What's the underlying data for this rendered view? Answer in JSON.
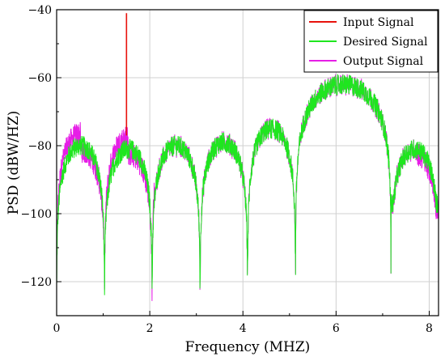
{
  "chart_data": {
    "type": "line",
    "xlabel": "Frequency (MHZ)",
    "ylabel": "PSD (dBW/HZ)",
    "xlim": [
      0,
      8.2
    ],
    "ylim": [
      -130,
      -40
    ],
    "xticks": [
      0,
      2,
      4,
      6,
      8
    ],
    "yticks": [
      -120,
      -100,
      -80,
      -60,
      -40
    ],
    "xtick_labels": [
      "0",
      "2",
      "4",
      "6",
      "8"
    ],
    "ytick_labels": [
      "−120",
      "−100",
      "−80",
      "−60",
      "−40"
    ],
    "grid": true,
    "legend_position": "top-right",
    "lobes": [
      {
        "from": 0.0,
        "to": 1.03,
        "peak": -80,
        "null": -122
      },
      {
        "from": 1.03,
        "to": 2.05,
        "peak": -81,
        "null": -121
      },
      {
        "from": 2.05,
        "to": 3.08,
        "peak": -80,
        "null": -120
      },
      {
        "from": 3.08,
        "to": 4.1,
        "peak": -79,
        "null": -117
      },
      {
        "from": 4.1,
        "to": 5.13,
        "peak": -75,
        "null": -112
      },
      {
        "from": 5.13,
        "to": 7.18,
        "peak": -62,
        "null": -116
      },
      {
        "from": 7.18,
        "to": 8.2,
        "peak": -81,
        "null": -97
      }
    ],
    "series": [
      {
        "name": "Input Signal",
        "color": "#e8120c",
        "spike_x": 1.5,
        "spike_top": -41,
        "spike_base": -77
      },
      {
        "name": "Desired Signal",
        "color": "#1fe61f"
      },
      {
        "name": "Output Signal",
        "color": "#e61ee6",
        "deviation_regions": [
          [
            0.0,
            2.1
          ],
          [
            7.7,
            8.2
          ]
        ]
      }
    ]
  }
}
